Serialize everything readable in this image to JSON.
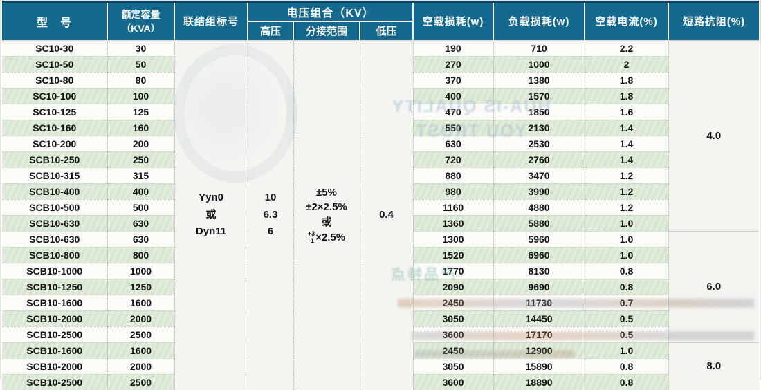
{
  "table": {
    "headers": {
      "model": "型　号",
      "capacity_line1": "额定容量",
      "capacity_line2": "（KVA）",
      "vector_group": "联结组标号",
      "voltage_combo": "电压组合（KV）",
      "hv": "高压",
      "tap_range": "分接范围",
      "lv": "低压",
      "no_load_loss": "空载损耗(w)",
      "load_loss": "负载损耗(w)",
      "no_load_current": "空载电流(%)",
      "impedance": "短路抗阻(%)"
    },
    "merged": {
      "vector_group_lines": [
        "Yyn0",
        "或",
        "Dyn11"
      ],
      "hv_lines": [
        "10",
        "6.3",
        "6"
      ],
      "tap_lines": [
        "±5%",
        "±2×2.5%",
        "或"
      ],
      "tap_frac_top": "+3",
      "tap_frac_bottom": "-1",
      "tap_frac_suffix": "×2.5%",
      "lv_value": "0.4",
      "impedance_groups": [
        {
          "value": "4.0",
          "span": 12
        },
        {
          "value": "6.0",
          "span": 7
        },
        {
          "value": "8.0",
          "span": 3
        }
      ]
    },
    "rows": [
      [
        "SC10-30",
        "30",
        "190",
        "710",
        "2.2"
      ],
      [
        "SC10-50",
        "50",
        "270",
        "1000",
        "2"
      ],
      [
        "SC10-80",
        "80",
        "370",
        "1380",
        "1.8"
      ],
      [
        "SC10-100",
        "100",
        "400",
        "1570",
        "1.8"
      ],
      [
        "SC10-125",
        "125",
        "470",
        "1850",
        "1.6"
      ],
      [
        "SC10-160",
        "160",
        "550",
        "2130",
        "1.4"
      ],
      [
        "SC10-200",
        "200",
        "630",
        "2530",
        "1.4"
      ],
      [
        "SCB10-250",
        "250",
        "720",
        "2760",
        "1.4"
      ],
      [
        "SCB10-315",
        "315",
        "880",
        "3470",
        "1.2"
      ],
      [
        "SCB10-400",
        "400",
        "980",
        "3990",
        "1.2"
      ],
      [
        "SCB10-500",
        "500",
        "1160",
        "4880",
        "1.2"
      ],
      [
        "SCB10-630",
        "630",
        "1360",
        "5880",
        "1.0"
      ],
      [
        "SCB10-630",
        "630",
        "1300",
        "5960",
        "1.0"
      ],
      [
        "SCB10-800",
        "800",
        "1520",
        "6960",
        "1.0"
      ],
      [
        "SCB10-1000",
        "1000",
        "1770",
        "8130",
        "0.8"
      ],
      [
        "SCB10-1250",
        "1250",
        "2090",
        "9690",
        "0.8"
      ],
      [
        "SCB10-1600",
        "1600",
        "2450",
        "11730",
        "0.7"
      ],
      [
        "SCB10-2000",
        "2000",
        "3050",
        "14450",
        "0.5"
      ],
      [
        "SCB10-2500",
        "2500",
        "3600",
        "17170",
        "0.5"
      ],
      [
        "SCB10-1600",
        "1600",
        "2450",
        "12900",
        "1.0"
      ],
      [
        "SCB10-2000",
        "2000",
        "3050",
        "15890",
        "0.8"
      ],
      [
        "SCB10-2500",
        "2500",
        "3600",
        "18890",
        "0.8"
      ]
    ]
  },
  "watermark": {
    "quality_line1": "HUA-IS QUALITY",
    "quality_line2": "YOU TRUST",
    "feature_tag": "产品特点"
  },
  "colors": {
    "header_bg": "#15698f",
    "header_top_border": "#143f5c",
    "stripe_green": "#dce8d6",
    "merged_bg": "#f4f4f1"
  }
}
